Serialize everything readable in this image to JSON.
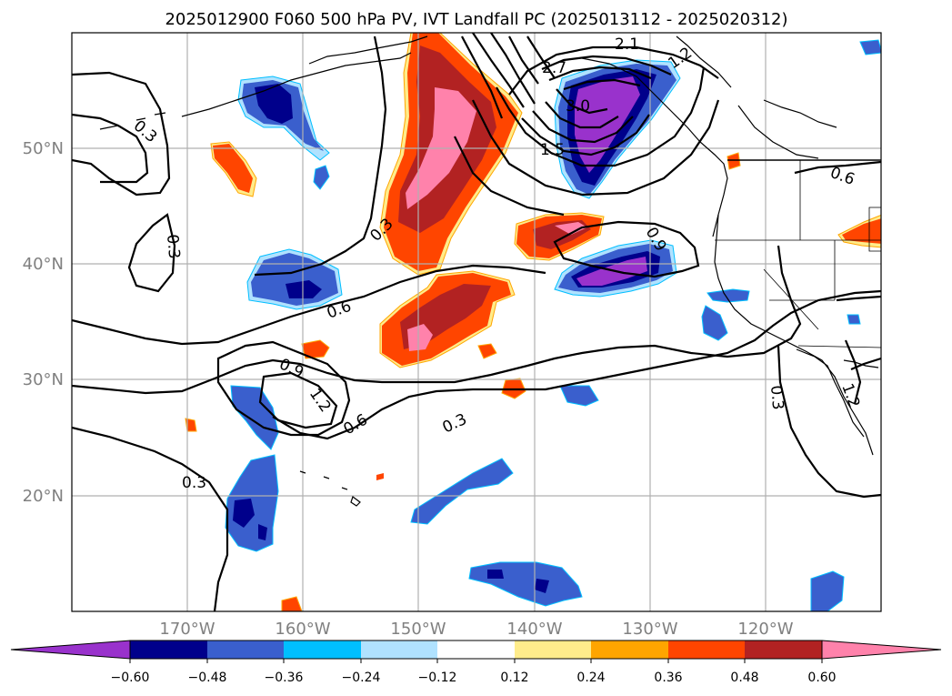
{
  "title": "2025012900 F060 500 hPa PV, IVT Landfall PC (2025013112 - 2025020312)",
  "map": {
    "lon_range": [
      -180,
      -110
    ],
    "lat_range": [
      10,
      60
    ],
    "lon_ticks": [
      {
        "lon": -170,
        "label": "170°W"
      },
      {
        "lon": -160,
        "label": "160°W"
      },
      {
        "lon": -150,
        "label": "150°W"
      },
      {
        "lon": -140,
        "label": "140°W"
      },
      {
        "lon": -130,
        "label": "130°W"
      },
      {
        "lon": -120,
        "label": "120°W"
      }
    ],
    "lat_ticks": [
      {
        "lat": 20,
        "label": "20°N"
      },
      {
        "lat": 30,
        "label": "30°N"
      },
      {
        "lat": 40,
        "label": "40°N"
      },
      {
        "lat": 50,
        "label": "50°N"
      }
    ],
    "grid": true,
    "contour_labels": [
      "0.3",
      "0.3",
      "0.3",
      "0.3",
      "0.3",
      "0.3",
      "0.6",
      "0.6",
      "0.6",
      "0.9",
      "0.9",
      "1.2",
      "1.2",
      "1.2",
      "2.7",
      "3.0",
      "2.1",
      "1.5"
    ]
  },
  "colorbar": {
    "ticks": [
      "−0.60",
      "−0.48",
      "−0.36",
      "−0.24",
      "−0.12",
      "0.12",
      "0.24",
      "0.36",
      "0.48",
      "0.60"
    ],
    "colors": [
      "#9932cc",
      "#00008b",
      "#3a5fcd",
      "#00bfff",
      "#b0e2ff",
      "#ffffff",
      "#ffec8b",
      "#ffa500",
      "#ff4500",
      "#b22222",
      "#ff82ab"
    ]
  },
  "colors": {
    "purple": "#9932cc",
    "navy": "#00008b",
    "blue": "#3a5fcd",
    "cyan": "#00bfff",
    "lightblue": "#b0e2ff",
    "yellow": "#ffec8b",
    "orange": "#ffa500",
    "orangered": "#ff4500",
    "firebrick": "#b22222",
    "pink": "#ff82ab"
  }
}
